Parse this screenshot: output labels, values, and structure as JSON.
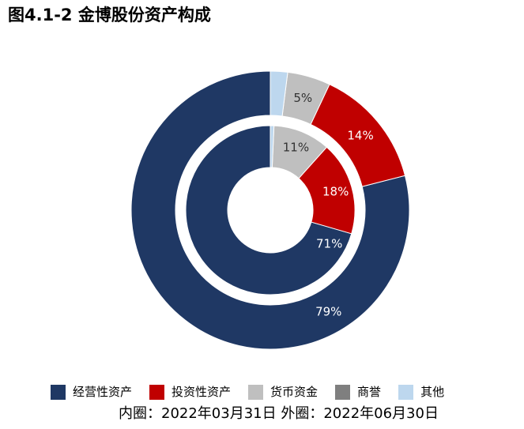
{
  "title": "图4.1-2 金博股份资产构成",
  "chart_data": {
    "type": "pie",
    "subtype": "donut-nested",
    "categories": [
      "经营性资产",
      "投资性资产",
      "货币资金",
      "商誉",
      "其他"
    ],
    "colors": [
      "#1F3864",
      "#C00000",
      "#BFBFBF",
      "#7F7F7F",
      "#BDD7EE"
    ],
    "label_colors": [
      "#FFFFFF",
      "#FFFFFF",
      "#333333",
      "#FFFFFF",
      "#333333"
    ],
    "series": [
      {
        "ring": "outer",
        "values": [
          79,
          14,
          5,
          0,
          2
        ],
        "labels": [
          "79%",
          "14%",
          "5%",
          "",
          ""
        ]
      },
      {
        "ring": "inner",
        "values": [
          71,
          18,
          11,
          0,
          0.7
        ],
        "labels": [
          "71%",
          "18%",
          "11%",
          "",
          ""
        ]
      }
    ]
  },
  "legend": {
    "items": [
      {
        "label": "经营性资产",
        "color": "#1F3864"
      },
      {
        "label": "投资性资产",
        "color": "#C00000"
      },
      {
        "label": "货币资金",
        "color": "#BFBFBF"
      },
      {
        "label": "商誉",
        "color": "#7F7F7F"
      },
      {
        "label": "其他",
        "color": "#BDD7EE"
      }
    ]
  },
  "footnote": "内圈：2022年03月31日 外圈：2022年06月30日"
}
